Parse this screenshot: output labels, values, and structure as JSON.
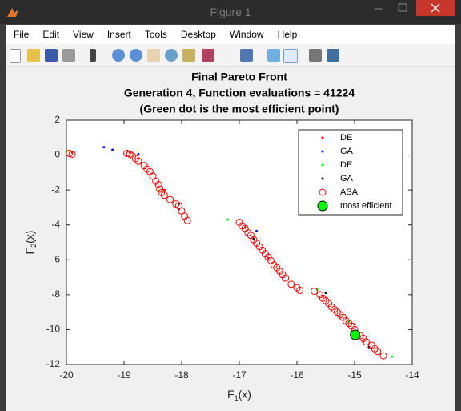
{
  "window": {
    "title": "Figure 1"
  },
  "menu": [
    "File",
    "Edit",
    "View",
    "Insert",
    "Tools",
    "Desktop",
    "Window",
    "Help"
  ],
  "chart_data": {
    "type": "scatter",
    "title": [
      "Final Pareto Front",
      "Generation 4, Function evaluations = 41224",
      "(Green dot is the most efficient point)"
    ],
    "xlabel": [
      "F",
      "1",
      "(x)"
    ],
    "ylabel": [
      "F",
      "2",
      "(x)"
    ],
    "xlim": [
      -20,
      -14
    ],
    "xticks": [
      -20,
      -19,
      -18,
      -17,
      -16,
      -15,
      -14
    ],
    "ylim": [
      -12,
      2
    ],
    "yticks": [
      -12,
      -10,
      -8,
      -6,
      -4,
      -2,
      0,
      2
    ],
    "legend": "northeast",
    "series": [
      {
        "name": "DE",
        "color": "#ff0000",
        "marker": "dot",
        "x": [
          -19.9,
          -18.9,
          -18.7,
          -18.3,
          -16.9,
          -16.5,
          -15.55,
          -14.85
        ],
        "y": [
          0.15,
          0.15,
          -0.45,
          -2.0,
          -4.15,
          -5.9,
          -8.1,
          -10.7
        ]
      },
      {
        "name": "GA",
        "color": "#0000ff",
        "marker": "dot",
        "x": [
          -19.35,
          -19.2,
          -18.75,
          -16.7,
          -18.05
        ],
        "y": [
          0.45,
          0.3,
          0.05,
          -4.35,
          -3.1
        ]
      },
      {
        "name": "DE",
        "color": "#00ff00",
        "marker": "dot",
        "x": [
          -20.0,
          -18.4,
          -17.2,
          -15.65,
          -14.35,
          -15.1
        ],
        "y": [
          0.2,
          -2.05,
          -3.7,
          -7.7,
          -11.55,
          -9.55
        ]
      },
      {
        "name": "GA",
        "color": "#000000",
        "marker": "dot",
        "x": [
          -18.05,
          -16.75,
          -15.5,
          -14.75,
          -15.0
        ],
        "y": [
          -2.8,
          -4.8,
          -7.9,
          -11.0,
          -9.7
        ]
      },
      {
        "name": "ASA",
        "color": "#ff0000",
        "marker": "circle",
        "x": [
          -19.95,
          -19.9,
          -18.95,
          -18.9,
          -18.85,
          -18.8,
          -18.75,
          -18.65,
          -18.6,
          -18.55,
          -18.5,
          -18.45,
          -18.4,
          -18.38,
          -18.35,
          -18.3,
          -18.2,
          -18.1,
          -18.05,
          -18.0,
          -17.95,
          -17.9,
          -17.0,
          -16.95,
          -16.9,
          -16.85,
          -16.8,
          -16.75,
          -16.7,
          -16.65,
          -16.6,
          -16.55,
          -16.5,
          -16.45,
          -16.4,
          -16.35,
          -16.3,
          -16.25,
          -16.2,
          -16.1,
          -16.0,
          -15.95,
          -15.7,
          -15.6,
          -15.55,
          -15.5,
          -15.45,
          -15.4,
          -15.35,
          -15.3,
          -15.25,
          -15.2,
          -15.15,
          -15.1,
          -15.05,
          -15.0,
          -14.9,
          -14.85,
          -14.8,
          -14.7,
          -14.65,
          -14.6,
          -14.5
        ],
        "y": [
          0.1,
          0.05,
          0.1,
          0.05,
          -0.05,
          -0.2,
          -0.35,
          -0.6,
          -0.8,
          -0.95,
          -1.2,
          -1.5,
          -1.7,
          -1.95,
          -2.15,
          -2.3,
          -2.55,
          -2.8,
          -2.9,
          -3.2,
          -3.5,
          -3.75,
          -3.85,
          -4.05,
          -4.2,
          -4.45,
          -4.6,
          -4.85,
          -5.05,
          -5.25,
          -5.45,
          -5.65,
          -5.85,
          -6.05,
          -6.3,
          -6.45,
          -6.65,
          -6.85,
          -7.05,
          -7.4,
          -7.6,
          -7.75,
          -7.8,
          -8.0,
          -8.2,
          -8.35,
          -8.5,
          -8.7,
          -8.85,
          -9.0,
          -9.15,
          -9.3,
          -9.5,
          -9.65,
          -9.8,
          -10.0,
          -10.35,
          -10.5,
          -10.7,
          -10.9,
          -11.1,
          -11.25,
          -11.5
        ]
      },
      {
        "name": "most efficient",
        "color": "#00ff00",
        "marker": "filled-circle",
        "x": [
          -14.99
        ],
        "y": [
          -10.3
        ]
      }
    ]
  }
}
